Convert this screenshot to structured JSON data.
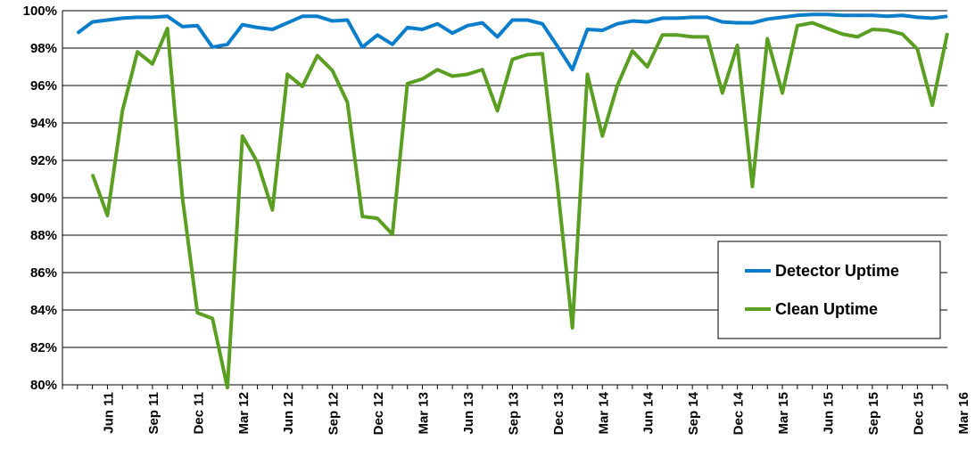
{
  "chart_data": {
    "type": "line",
    "title": "",
    "xlabel": "",
    "ylabel": "",
    "ylim": [
      80,
      100
    ],
    "y_tick_values": [
      80,
      82,
      84,
      86,
      88,
      90,
      92,
      94,
      96,
      98,
      100
    ],
    "y_tick_labels": [
      "80%",
      "82%",
      "84%",
      "86%",
      "88%",
      "90%",
      "92%",
      "94%",
      "96%",
      "98%",
      "100%"
    ],
    "x_tick_labels": [
      "Jun 11",
      "Sep 11",
      "Dec 11",
      "Mar 12",
      "Jun 12",
      "Sep 12",
      "Dec 12",
      "Mar 13",
      "Jun 13",
      "Sep 13",
      "Dec 13",
      "Mar 14",
      "Jun 14",
      "Sep 14",
      "Dec 14",
      "Mar 15",
      "Jun 15",
      "Sep 15",
      "Dec 15",
      "Mar 16"
    ],
    "x": [
      "Apr 11",
      "May 11",
      "Jun 11",
      "Jul 11",
      "Aug 11",
      "Sep 11",
      "Oct 11",
      "Nov 11",
      "Dec 11",
      "Jan 12",
      "Feb 12",
      "Mar 12",
      "Apr 12",
      "May 12",
      "Jun 12",
      "Jul 12",
      "Aug 12",
      "Sep 12",
      "Oct 12",
      "Nov 12",
      "Dec 12",
      "Jan 13",
      "Feb 13",
      "Mar 13",
      "Apr 13",
      "May 13",
      "Jun 13",
      "Jul 13",
      "Aug 13",
      "Sep 13",
      "Oct 13",
      "Nov 13",
      "Dec 13",
      "Jan 14",
      "Feb 14",
      "Mar 14",
      "Apr 14",
      "May 14",
      "Jun 14",
      "Jul 14",
      "Aug 14",
      "Sep 14",
      "Oct 14",
      "Nov 14",
      "Dec 14",
      "Jan 15",
      "Feb 15",
      "Mar 15",
      "Apr 15",
      "May 15",
      "Jun 15",
      "Jul 15",
      "Aug 15",
      "Sep 15",
      "Oct 15",
      "Nov 15",
      "Dec 15",
      "Jan 16",
      "Feb 16"
    ],
    "grid": true,
    "legend_position": "right",
    "series": [
      {
        "name": "Detector Uptime",
        "color": "#0a7dcb",
        "values": [
          98.8,
          99.4,
          99.5,
          99.6,
          99.65,
          99.65,
          99.7,
          99.15,
          99.2,
          98.05,
          98.2,
          99.25,
          99.1,
          99.0,
          99.35,
          99.7,
          99.7,
          99.45,
          99.5,
          98.05,
          98.7,
          98.2,
          99.1,
          99.0,
          99.3,
          98.8,
          99.2,
          99.35,
          98.6,
          99.5,
          99.5,
          99.3,
          98.1,
          96.85,
          99.0,
          98.95,
          99.3,
          99.45,
          99.4,
          99.6,
          99.6,
          99.65,
          99.65,
          99.4,
          99.35,
          99.35,
          99.55,
          99.65,
          99.75,
          99.8,
          99.8,
          99.75,
          99.75,
          99.75,
          99.7,
          99.75,
          99.65,
          99.6,
          99.7
        ]
      },
      {
        "name": "Clean Uptime",
        "color": "#5a9e22",
        "values": [
          null,
          91.25,
          89.05,
          94.65,
          97.8,
          97.15,
          99.05,
          90.0,
          83.85,
          83.55,
          79.85,
          93.3,
          91.9,
          89.35,
          96.6,
          95.95,
          97.6,
          96.8,
          95.1,
          89.0,
          88.9,
          88.05,
          96.1,
          96.35,
          96.85,
          96.5,
          96.6,
          96.85,
          94.65,
          97.4,
          97.65,
          97.7,
          90.7,
          83.05,
          96.6,
          93.3,
          96.0,
          97.85,
          97.0,
          98.7,
          98.7,
          98.6,
          98.6,
          95.6,
          98.15,
          90.6,
          98.5,
          95.6,
          99.2,
          99.35,
          99.05,
          98.75,
          98.6,
          99.0,
          98.95,
          98.75,
          97.95,
          94.95,
          98.8
        ]
      }
    ]
  }
}
